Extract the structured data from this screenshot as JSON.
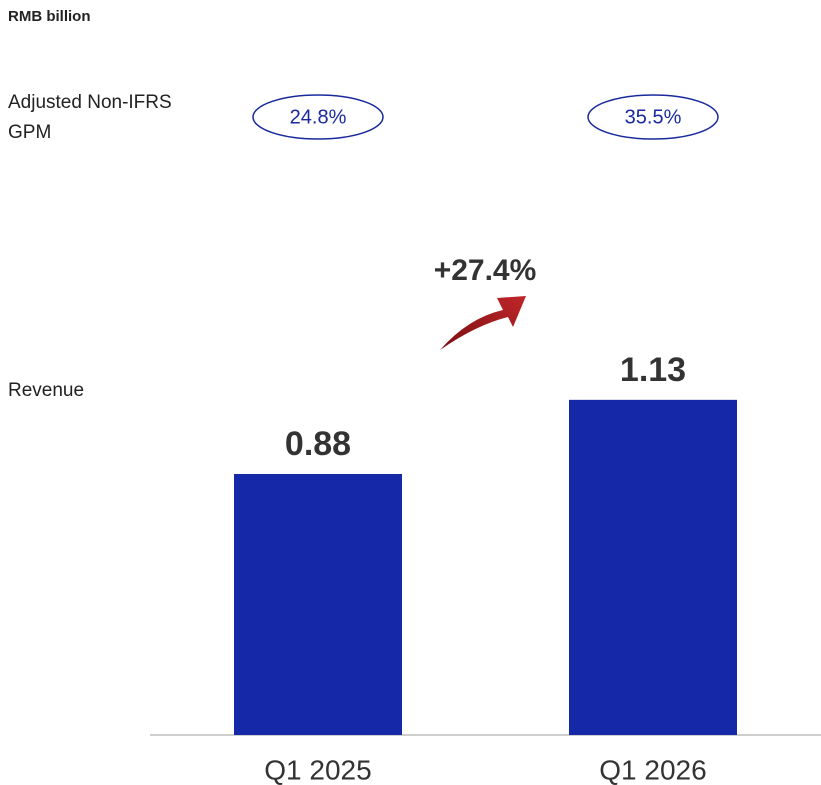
{
  "chart_data": {
    "type": "bar",
    "unit": "RMB billion",
    "categories": [
      "Q1 2025",
      "Q1 2026"
    ],
    "values": [
      0.88,
      1.13
    ],
    "color": "#1428a8",
    "row_labels": {
      "gpm": "Adjusted Non-IFRS GPM",
      "revenue": "Revenue"
    },
    "gpm": {
      "values": [
        24.8,
        35.5
      ],
      "value_labels": [
        "24.8%",
        "35.5%"
      ]
    },
    "growth": {
      "value": 27.4,
      "label": "+27.4%"
    }
  }
}
